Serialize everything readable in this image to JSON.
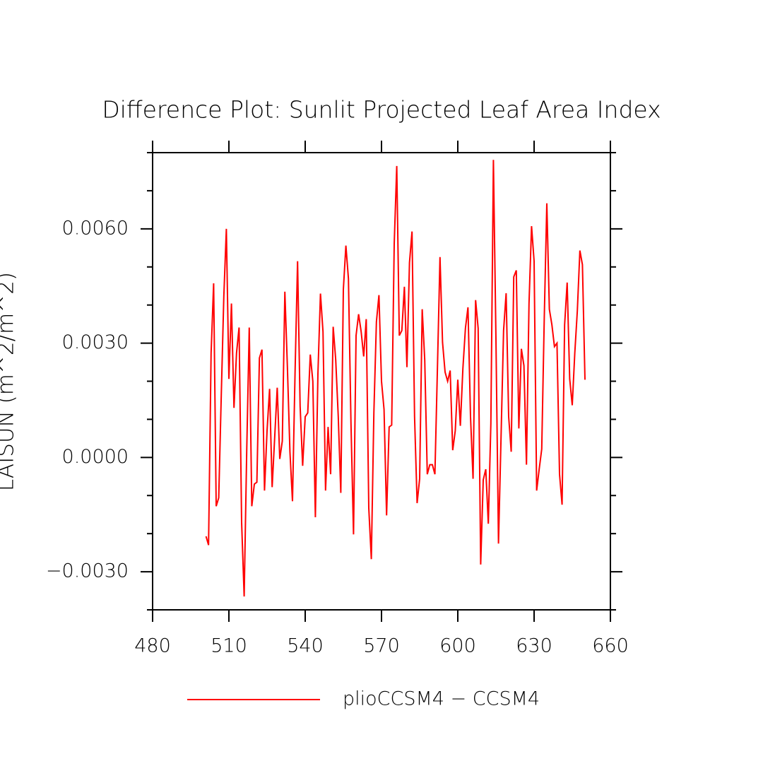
{
  "chart_data": {
    "type": "line",
    "title": "Difference Plot: Sunlit Projected Leaf Area Index",
    "y_label": "LAISUN   (m^2/m^2)",
    "x": [
      501,
      502,
      503,
      504,
      505,
      506,
      507,
      508,
      509,
      510,
      511,
      512,
      513,
      514,
      515,
      516,
      517,
      518,
      519,
      520,
      521,
      522,
      523,
      524,
      525,
      526,
      527,
      528,
      529,
      530,
      531,
      532,
      533,
      534,
      535,
      536,
      537,
      538,
      539,
      540,
      541,
      542,
      543,
      544,
      545,
      546,
      547,
      548,
      549,
      550,
      551,
      552,
      553,
      554,
      555,
      556,
      557,
      558,
      559,
      560,
      561,
      562,
      563,
      564,
      565,
      566,
      567,
      568,
      569,
      570,
      571,
      572,
      573,
      574,
      575,
      576,
      577,
      578,
      579,
      580,
      581,
      582,
      583,
      584,
      585,
      586,
      587,
      588,
      589,
      590,
      591,
      592,
      593,
      594,
      595,
      596,
      597,
      598,
      599,
      600,
      601,
      602,
      603,
      604,
      605,
      606,
      607,
      608,
      609,
      610,
      611,
      612,
      613,
      614,
      615,
      616,
      617,
      618,
      619,
      620,
      621,
      622,
      623,
      624,
      625,
      626,
      627,
      628,
      629,
      630,
      631,
      632,
      633,
      634,
      635,
      636,
      637,
      638,
      639,
      640,
      641,
      642,
      643,
      644,
      645,
      646,
      647,
      648,
      649,
      650
    ],
    "series": [
      {
        "name": "plioCCSM4 − CCSM4",
        "color": "#ff0000",
        "values": [
          -0.00207,
          -0.0023,
          0.00274,
          0.00457,
          -0.00128,
          -0.00106,
          0.00163,
          0.00422,
          0.006,
          0.00206,
          0.00404,
          0.0013,
          0.00274,
          0.00341,
          -0.0017,
          -0.00365,
          0.00015,
          0.00341,
          -0.00128,
          -0.0007,
          -0.00065,
          0.00261,
          0.00283,
          -0.00087,
          0.0007,
          0.0018,
          -0.00078,
          0.00052,
          0.00183,
          -4e-05,
          0.00043,
          0.00435,
          0.00237,
          0.00015,
          -0.00115,
          0.00219,
          0.00515,
          0.00135,
          -0.00022,
          0.00107,
          0.00117,
          0.0027,
          0.002,
          -0.00157,
          0.00219,
          0.0043,
          0.0033,
          -0.00087,
          0.0008,
          -0.00044,
          0.00343,
          0.00256,
          0.00107,
          -0.00093,
          0.00441,
          0.00556,
          0.00469,
          0.00089,
          -0.00202,
          0.0032,
          0.00376,
          0.0033,
          0.00265,
          0.00363,
          -0.00133,
          -0.00267,
          0.00117,
          0.00356,
          0.00426,
          0.002,
          0.00126,
          -0.00152,
          0.0008,
          0.00085,
          0.00561,
          0.00765,
          0.0032,
          0.00333,
          0.00448,
          0.00237,
          0.00511,
          0.00593,
          0.00107,
          -0.0012,
          -0.00056,
          0.00389,
          0.00256,
          -0.00044,
          -0.00019,
          -0.00019,
          -0.00044,
          0.00237,
          0.00526,
          0.00302,
          0.00224,
          0.002,
          0.00228,
          0.00019,
          0.0007,
          0.00204,
          0.00083,
          0.00233,
          0.00339,
          0.00394,
          0.00107,
          -0.00056,
          0.00413,
          0.00339,
          -0.00281,
          -0.00059,
          -0.00031,
          -0.00174,
          0.00089,
          0.00781,
          0.00311,
          -0.00226,
          0.00052,
          0.00333,
          0.00431,
          0.00107,
          0.00015,
          0.00474,
          0.00491,
          0.00076,
          0.00285,
          0.00241,
          -0.00019,
          0.00404,
          0.00607,
          0.00515,
          -0.00087,
          -0.00031,
          0.00022,
          0.00367,
          0.00667,
          0.00389,
          0.00348,
          0.00291,
          0.003,
          -0.00044,
          -0.00124,
          0.00348,
          0.00459,
          0.00206,
          0.00137,
          0.00274,
          0.00385,
          0.00543,
          0.00506,
          0.00204
        ]
      }
    ],
    "xlim": [
      480,
      660
    ],
    "xticks": [
      480,
      510,
      540,
      570,
      600,
      630,
      660
    ],
    "ylim": [
      -0.004,
      0.008
    ],
    "yticks": [
      {
        "value": -0.003,
        "label": "−0.0030"
      },
      {
        "value": 0,
        "label": "0.0000"
      },
      {
        "value": 0.003,
        "label": "0.0030"
      },
      {
        "value": 0.006,
        "label": "0.0060"
      }
    ],
    "yticks_minor": [
      -0.004,
      -0.002,
      -0.001,
      0.001,
      0.002,
      0.004,
      0.005,
      0.007,
      0.008
    ]
  }
}
